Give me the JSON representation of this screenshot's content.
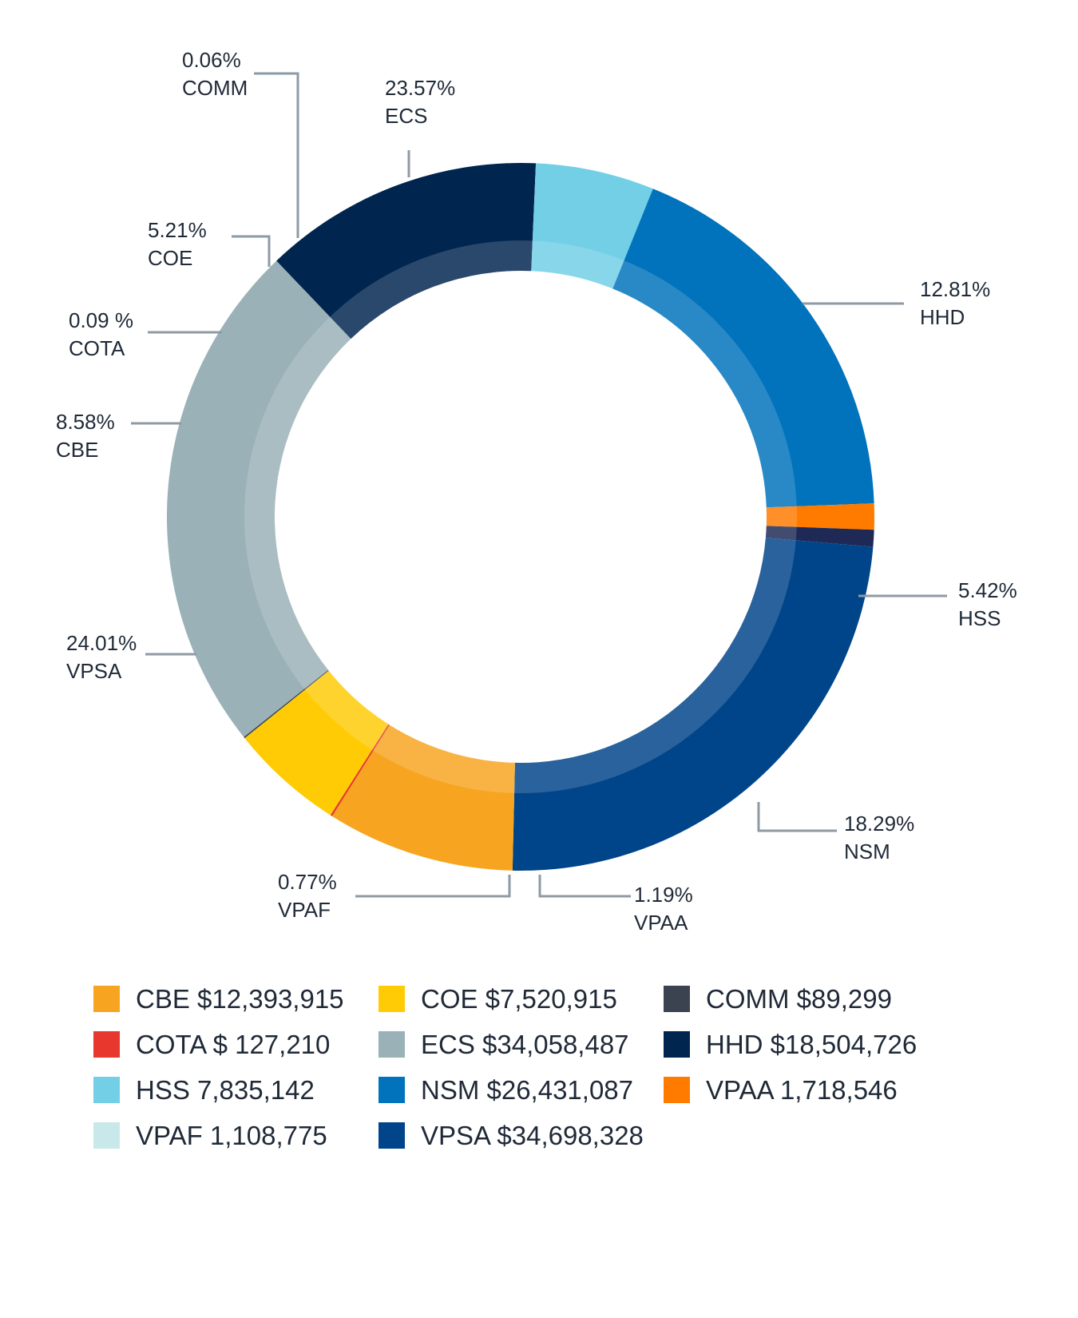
{
  "chart_data": {
    "type": "pie",
    "style": "donut",
    "legend_position": "bottom",
    "slices": [
      {
        "key": "ECS",
        "pct_text": "23.57%",
        "pct": 23.57,
        "name": "ECS",
        "legend": "ECS $34,058,487",
        "color": "#9ab1b7"
      },
      {
        "key": "HHD",
        "pct_text": "12.81%",
        "pct": 12.81,
        "name": "HHD",
        "legend": "HHD $18,504,726",
        "color": "#00254f"
      },
      {
        "key": "HSS",
        "pct_text": "5.42%",
        "pct": 5.42,
        "name": "HSS",
        "legend": "HSS 7,835,142",
        "color": "#72cfe6"
      },
      {
        "key": "NSM",
        "pct_text": "18.29%",
        "pct": 18.29,
        "name": "NSM",
        "legend": "NSM $26,431,087",
        "color": "#0073bc"
      },
      {
        "key": "VPAA",
        "pct_text": "1.19%",
        "pct": 1.19,
        "name": "VPAA",
        "legend": "VPAA 1,718,546",
        "color": "#ff7b00"
      },
      {
        "key": "VPAF",
        "pct_text": "0.77%",
        "pct": 0.77,
        "name": "VPAF",
        "legend": "VPAF 1,108,775",
        "color": "#1e2a55"
      },
      {
        "key": "VPSA",
        "pct_text": "24.01%",
        "pct": 24.01,
        "name": "VPSA",
        "legend": "VPSA $34,698,328",
        "color": "#00458a"
      },
      {
        "key": "CBE",
        "pct_text": "8.58%",
        "pct": 8.58,
        "name": "CBE",
        "legend": "CBE $12,393,915",
        "color": "#f7a521"
      },
      {
        "key": "COTA",
        "pct_text": "0.09 %",
        "pct": 0.09,
        "name": "COTA",
        "legend": "COTA $ 127,210",
        "color": "#e8382d"
      },
      {
        "key": "COE",
        "pct_text": "5.21%",
        "pct": 5.21,
        "name": "COE",
        "legend": "COE $7,520,915",
        "color": "#ffcb05"
      },
      {
        "key": "COMM",
        "pct_text": "0.06%",
        "pct": 0.06,
        "name": "COMM",
        "legend": "COMM $89,299",
        "color": "#3b4250"
      }
    ],
    "legend_order": [
      "CBE",
      "COE",
      "COMM",
      "COTA",
      "ECS",
      "HHD",
      "HSS",
      "NSM",
      "VPAA",
      "VPAF",
      "VPSA"
    ],
    "legend_swatch_colors": {
      "VPAF": "#c9e8ea"
    }
  }
}
